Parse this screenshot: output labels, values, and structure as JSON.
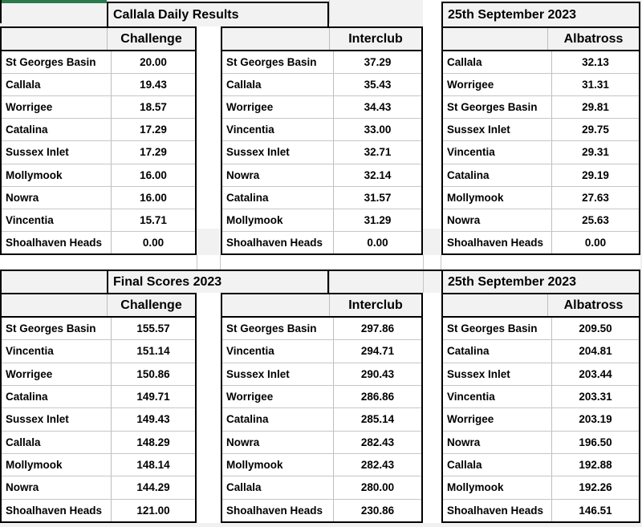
{
  "colors": {
    "green_strip": "#2a7a4d",
    "page_bg": "#f1f1f1",
    "header_bg": "#f2f2f2",
    "grid_line": "#bdbdbd",
    "table_border": "#000000"
  },
  "sections": [
    {
      "title_left": "Callala Daily Results",
      "title_right": "25th September 2023",
      "tables": [
        {
          "header": "Challenge",
          "rows": [
            {
              "club": "St Georges Basin",
              "score": "20.00"
            },
            {
              "club": "Callala",
              "score": "19.43"
            },
            {
              "club": "Worrigee",
              "score": "18.57"
            },
            {
              "club": "Catalina",
              "score": "17.29"
            },
            {
              "club": "Sussex Inlet",
              "score": "17.29"
            },
            {
              "club": "Mollymook",
              "score": "16.00"
            },
            {
              "club": "Nowra",
              "score": "16.00"
            },
            {
              "club": "Vincentia",
              "score": "15.71"
            },
            {
              "club": "Shoalhaven Heads",
              "score": "0.00"
            }
          ]
        },
        {
          "header": "Interclub",
          "rows": [
            {
              "club": "St Georges Basin",
              "score": "37.29"
            },
            {
              "club": "Callala",
              "score": "35.43"
            },
            {
              "club": "Worrigee",
              "score": "34.43"
            },
            {
              "club": "Vincentia",
              "score": "33.00"
            },
            {
              "club": "Sussex Inlet",
              "score": "32.71"
            },
            {
              "club": "Nowra",
              "score": "32.14"
            },
            {
              "club": "Catalina",
              "score": "31.57"
            },
            {
              "club": "Mollymook",
              "score": "31.29"
            },
            {
              "club": "Shoalhaven Heads",
              "score": "0.00"
            }
          ]
        },
        {
          "header": "Albatross",
          "rows": [
            {
              "club": "Callala",
              "score": "32.13"
            },
            {
              "club": "Worrigee",
              "score": "31.31"
            },
            {
              "club": "St Georges Basin",
              "score": "29.81"
            },
            {
              "club": "Sussex Inlet",
              "score": "29.75"
            },
            {
              "club": "Vincentia",
              "score": "29.31"
            },
            {
              "club": "Catalina",
              "score": "29.19"
            },
            {
              "club": "Mollymook",
              "score": "27.63"
            },
            {
              "club": "Nowra",
              "score": "25.63"
            },
            {
              "club": "Shoalhaven Heads",
              "score": "0.00"
            }
          ]
        }
      ]
    },
    {
      "title_left": "Final Scores 2023",
      "title_right": "25th September 2023",
      "tables": [
        {
          "header": "Challenge",
          "rows": [
            {
              "club": "St Georges Basin",
              "score": "155.57"
            },
            {
              "club": "Vincentia",
              "score": "151.14"
            },
            {
              "club": "Worrigee",
              "score": "150.86"
            },
            {
              "club": "Catalina",
              "score": "149.71"
            },
            {
              "club": "Sussex Inlet",
              "score": "149.43"
            },
            {
              "club": "Callala",
              "score": "148.29"
            },
            {
              "club": "Mollymook",
              "score": "148.14"
            },
            {
              "club": "Nowra",
              "score": "144.29"
            },
            {
              "club": "Shoalhaven Heads",
              "score": "121.00"
            }
          ]
        },
        {
          "header": "Interclub",
          "rows": [
            {
              "club": "St Georges Basin",
              "score": "297.86"
            },
            {
              "club": "Vincentia",
              "score": "294.71"
            },
            {
              "club": "Sussex Inlet",
              "score": "290.43"
            },
            {
              "club": "Worrigee",
              "score": "286.86"
            },
            {
              "club": "Catalina",
              "score": "285.14"
            },
            {
              "club": "Nowra",
              "score": "282.43"
            },
            {
              "club": "Mollymook",
              "score": "282.43"
            },
            {
              "club": "Callala",
              "score": "280.00"
            },
            {
              "club": "Shoalhaven Heads",
              "score": "230.86"
            }
          ]
        },
        {
          "header": "Albatross",
          "rows": [
            {
              "club": "St Georges Basin",
              "score": "209.50"
            },
            {
              "club": "Catalina",
              "score": "204.81"
            },
            {
              "club": "Sussex Inlet",
              "score": "203.44"
            },
            {
              "club": "Vincentia",
              "score": "203.31"
            },
            {
              "club": "Worrigee",
              "score": "203.19"
            },
            {
              "club": "Nowra",
              "score": "196.50"
            },
            {
              "club": "Callala",
              "score": "192.88"
            },
            {
              "club": "Mollymook",
              "score": "192.26"
            },
            {
              "club": "Shoalhaven Heads",
              "score": "146.51"
            }
          ]
        }
      ]
    }
  ]
}
